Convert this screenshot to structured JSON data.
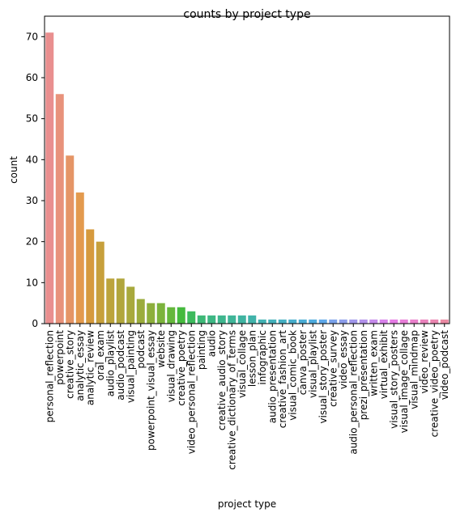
{
  "chart_data": {
    "type": "bar",
    "title": "counts by project type",
    "xlabel": "project type",
    "ylabel": "count",
    "ylim": [
      0,
      75
    ],
    "yticks": [
      0,
      10,
      20,
      30,
      40,
      50,
      60,
      70
    ],
    "grid": false,
    "categories": [
      "personal_reflection",
      "powerpoint",
      "creative_story",
      "analytic_essay",
      "analytic_review",
      "oral_exam",
      "audio_playlist",
      "audio_podcast",
      "visual_painting",
      "podcast",
      "powerpoint_visual_essay",
      "website",
      "visual_drawing",
      "creative_poetry",
      "video_personal_reflection",
      "painting",
      "audio",
      "creative_audio_story",
      "creative_dictionary_of_terms",
      "visual_collage",
      "lesson_plan",
      "infographic",
      "audio_presentation",
      "creative_fashion_art",
      "visual_comic_book",
      "canva_poster",
      "visual_playlist",
      "visual_story_poster",
      "creative_survey",
      "video_essay",
      "audio_personal_reflection",
      "prezi_presentation",
      "written_exam",
      "virtual_exhibit",
      "visual_story_posters",
      "visual_image_collage",
      "visual_mindmap",
      "video_review",
      "creative_video_poetry",
      "video_podcast"
    ],
    "values": [
      71,
      56,
      41,
      32,
      23,
      20,
      11,
      11,
      9,
      6,
      5,
      5,
      4,
      4,
      3,
      2,
      2,
      2,
      2,
      2,
      2,
      1,
      1,
      1,
      1,
      1,
      1,
      1,
      1,
      1,
      1,
      1,
      1,
      1,
      1,
      1,
      1,
      1,
      1,
      1
    ],
    "colors": [
      "#e98f8f",
      "#e8927b",
      "#e59566",
      "#e39a4e",
      "#d69a3d",
      "#c7a03c",
      "#bca43c",
      "#b1a63c",
      "#a8a93c",
      "#9bac3c",
      "#8daf3c",
      "#7cb33c",
      "#65b73c",
      "#45ba3e",
      "#3dba5d",
      "#3eb877",
      "#3eb784",
      "#3fb68e",
      "#40b598",
      "#40b4a1",
      "#41b3aa",
      "#42b2b3",
      "#43b1bb",
      "#45b0c3",
      "#47aecc",
      "#4aadd5",
      "#4eabde",
      "#5ea8e9",
      "#7aa2ea",
      "#8c9dea",
      "#a097ea",
      "#b291ea",
      "#c58aea",
      "#d882ea",
      "#e57ce4",
      "#e87ed8",
      "#e980cb",
      "#ea83bd",
      "#ea86b0",
      "#ea89a3"
    ]
  }
}
